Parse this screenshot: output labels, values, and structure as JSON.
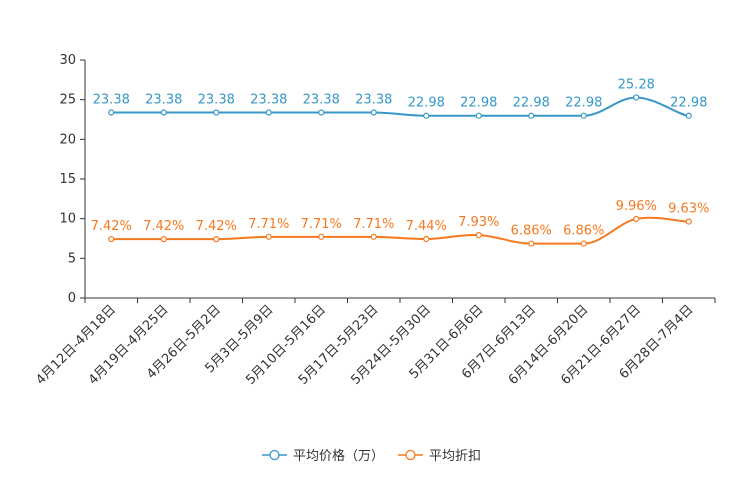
{
  "chart_data": {
    "type": "line",
    "categories": [
      "4月12日-4月18日",
      "4月19日-4月25日",
      "4月26日-5月2日",
      "5月3日-5月9日",
      "5月10日-5月16日",
      "5月17日-5月23日",
      "5月24日-5月30日",
      "5月31日-6月6日",
      "6月7日-6月13日",
      "6月14日-6月20日",
      "6月21日-6月27日",
      "6月28日-7月4日"
    ],
    "ylim": [
      0,
      30
    ],
    "yticks": [
      "0",
      "5",
      "10",
      "15",
      "20",
      "25",
      "30"
    ],
    "series": [
      {
        "name": "平均价格（万）",
        "color": "#3797c6",
        "values": [
          23.38,
          23.38,
          23.38,
          23.38,
          23.38,
          23.38,
          22.98,
          22.98,
          22.98,
          22.98,
          25.28,
          22.98
        ],
        "labels": [
          "23.38",
          "23.38",
          "23.38",
          "23.38",
          "23.38",
          "23.38",
          "22.98",
          "22.98",
          "22.98",
          "22.98",
          "25.28",
          "22.98"
        ]
      },
      {
        "name": "平均折扣",
        "color": "#f47920",
        "values": [
          7.42,
          7.42,
          7.42,
          7.71,
          7.71,
          7.71,
          7.44,
          7.93,
          6.86,
          6.86,
          9.96,
          9.63
        ],
        "labels": [
          "7.42%",
          "7.42%",
          "7.42%",
          "7.71%",
          "7.71%",
          "7.71%",
          "7.44%",
          "7.93%",
          "6.86%",
          "6.86%",
          "9.96%",
          "9.63%"
        ]
      }
    ],
    "legend": "bottom-center"
  }
}
